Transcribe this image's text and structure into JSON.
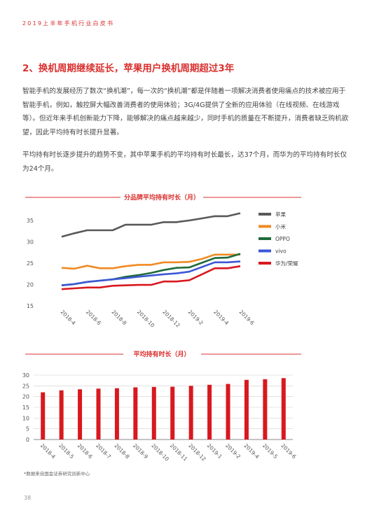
{
  "header": "2019上半年手机行业白皮书",
  "section_title": "2、换机周期继续延长，苹果用户换机周期超过3年",
  "paragraph1": "智能手机的发展经历了数次“换机潮”，每一次的“换机潮”都是伴随着一项解决消费者使用痛点的技术被应用于智能手机，例如，触控屏大幅改善消费者的使用体验；3G/4G提供了全新的应用体验（在线视频、在线游戏等）。但近年来手机创新能力下降，能够解决的痛点越来越少，同时手机的质量在不断提升，消费者缺乏购机欲望，因此平均持有时长提升显著。",
  "paragraph2": "平均持有时长逐步提升的趋势不变，其中苹果手机的平均持有时长最长，达37个月，而华为的平均持有时长仅为24个月。",
  "chart_data": [
    {
      "type": "line",
      "title": "分品牌平均持有时长（月）",
      "ylim": [
        15,
        35
      ],
      "yticks": [
        15,
        20,
        25,
        30,
        35
      ],
      "x": [
        "2018-4",
        "2018-5",
        "2018-6",
        "2018-7",
        "2018-8",
        "2018-9",
        "2018-10",
        "2018-11",
        "2018-12",
        "2019-1",
        "2019-2",
        "2019-3",
        "2019-4",
        "2019-5",
        "2019-6"
      ],
      "xtick_labels": [
        "2018-4",
        "2018-6",
        "2018-8",
        "2018-10",
        "2018-12",
        "2019-2",
        "2019-4",
        "2019-6"
      ],
      "legend_position": "right",
      "grid": false,
      "series": [
        {
          "name": "苹果",
          "color": "#595959",
          "values": [
            31.2,
            32.0,
            32.7,
            32.7,
            32.7,
            34.0,
            34.0,
            34.0,
            34.6,
            34.6,
            35.0,
            35.5,
            36.0,
            36.0,
            36.7
          ]
        },
        {
          "name": "小米",
          "color": "#f08a24",
          "values": [
            23.9,
            23.7,
            24.4,
            23.8,
            23.8,
            24.3,
            24.6,
            24.6,
            25.2,
            25.2,
            25.3,
            26.0,
            27.0,
            27.0,
            27.0
          ]
        },
        {
          "name": "OPPO",
          "color": "#1e6b3a",
          "values": [
            19.8,
            20.1,
            20.6,
            20.9,
            21.2,
            21.8,
            22.2,
            22.7,
            23.4,
            23.9,
            24.0,
            25.1,
            26.2,
            26.3,
            27.2
          ]
        },
        {
          "name": "vivo",
          "color": "#3d57d6",
          "values": [
            19.8,
            20.1,
            20.6,
            20.9,
            21.2,
            21.5,
            21.8,
            22.1,
            22.4,
            22.6,
            23.0,
            24.1,
            25.2,
            25.2,
            25.4
          ]
        },
        {
          "name": "华为/荣耀",
          "color": "#d9181f",
          "values": [
            18.9,
            19.1,
            19.3,
            19.3,
            19.7,
            19.8,
            19.9,
            19.9,
            20.7,
            20.7,
            21.0,
            22.4,
            23.8,
            23.8,
            24.3
          ]
        }
      ]
    },
    {
      "type": "bar",
      "title": "平均持有时长（月）",
      "ylim": [
        0,
        30
      ],
      "yticks": [
        0,
        5,
        10,
        15,
        20,
        25,
        30
      ],
      "color": "#d9181f",
      "categories": [
        "2018-4",
        "2018-5",
        "2018-6",
        "2018-7",
        "2018-8",
        "2018-9",
        "2018-10",
        "2018-11",
        "2018-12",
        "2019-1",
        "2019-2",
        "2019-4",
        "2019-5",
        "2019-6"
      ],
      "values": [
        22.0,
        22.9,
        23.4,
        23.7,
        23.9,
        24.3,
        24.5,
        24.6,
        25.0,
        25.5,
        25.9,
        27.8,
        28.1,
        28.6
      ]
    }
  ],
  "footnote": "*数据来自国金证券研究创新中心",
  "page_number": "38"
}
